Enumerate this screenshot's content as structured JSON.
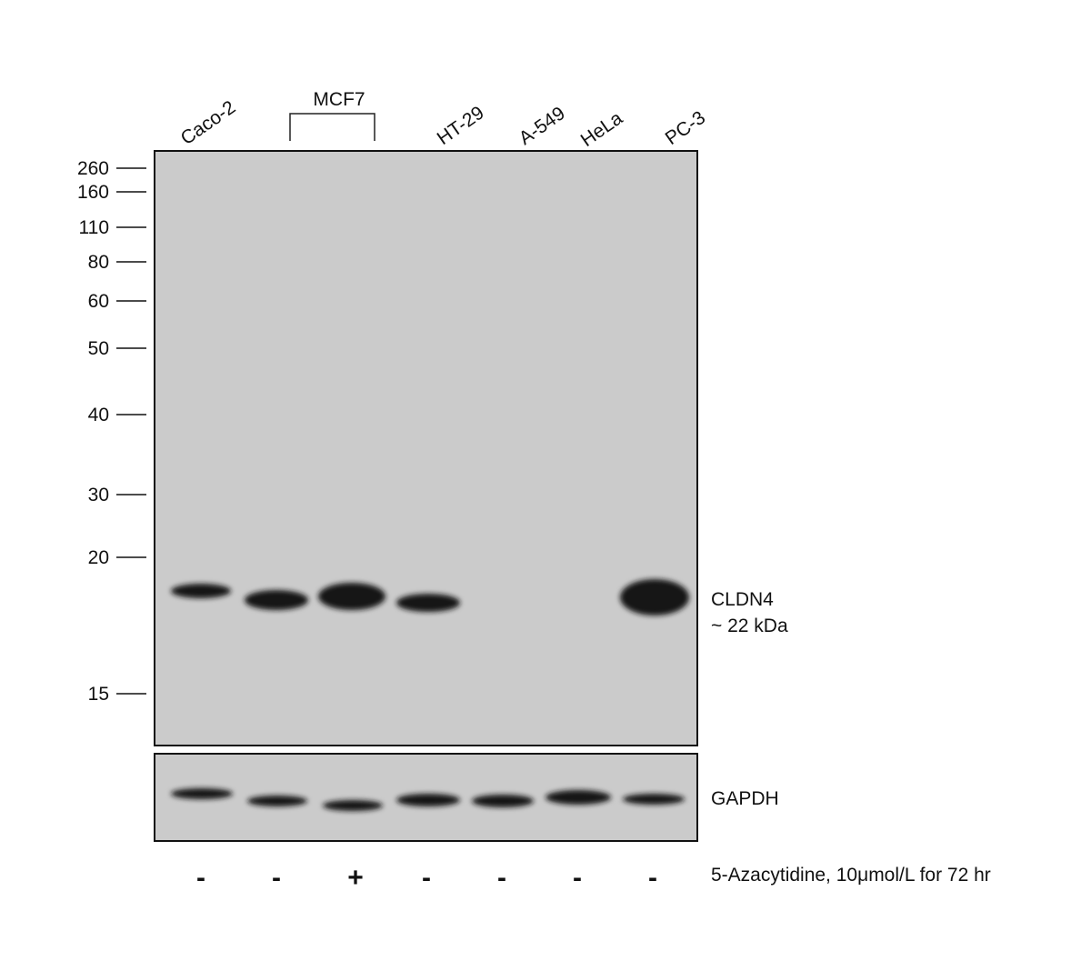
{
  "lanes": [
    "Caco-2",
    "MCF7",
    "HT-29",
    "A-549",
    "HeLa",
    "PC-3"
  ],
  "markers": [
    "260",
    "160",
    "110",
    "80",
    "60",
    "50",
    "40",
    "30",
    "20",
    "15"
  ],
  "bands": {
    "target": "CLDN4",
    "target_size": "~ 22 kDa",
    "control": "GAPDH"
  },
  "treatment": {
    "signs": [
      "-",
      "-",
      "+",
      "-",
      "-",
      "-",
      "-"
    ],
    "label": "5-Azacytidine,  10μmol/L for 72 hr"
  }
}
